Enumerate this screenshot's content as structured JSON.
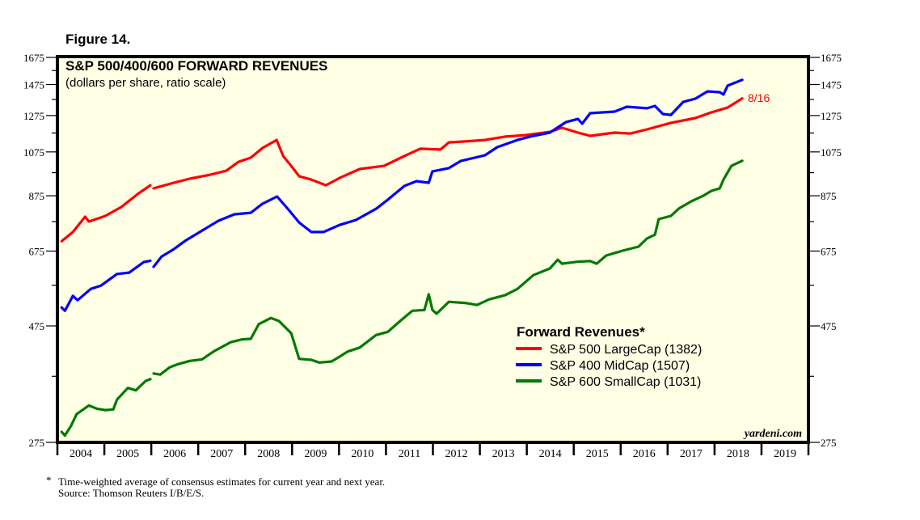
{
  "figure_label": "Figure 14.",
  "watermark": "yardeni.com",
  "end_label": "8/16",
  "footnote": {
    "marker": "*",
    "line1": "Time-weighted average of consensus estimates for current year and next year.",
    "line2": "Source: Thomson Reuters I/B/E/S."
  },
  "colors": {
    "background": "#ffffe6",
    "sp500": "#ff0000",
    "sp400": "#0000ff",
    "sp600": "#007a00"
  },
  "chart_data": {
    "type": "line",
    "title": "S&P 500/400/600 FORWARD REVENUES",
    "subtitle": "(dollars per share, ratio scale)",
    "xlabel": "",
    "ylabel": "",
    "yscale": "log",
    "ylim": [
      275,
      1675
    ],
    "xlim": [
      2004,
      2020
    ],
    "yticks": [
      275,
      475,
      675,
      875,
      1075,
      1275,
      1475,
      1675
    ],
    "yticks_minor": [
      375,
      575,
      775,
      975,
      1175,
      1375,
      1575
    ],
    "xtick_labels": [
      "2004",
      "2005",
      "2006",
      "2007",
      "2008",
      "2009",
      "2010",
      "2011",
      "2012",
      "2013",
      "2014",
      "2015",
      "2016",
      "2017",
      "2018",
      "2019"
    ],
    "grid": false,
    "legend": {
      "title": "Forward Revenues*",
      "placement": "lower-right",
      "entries": [
        "S&P 500 LargeCap (1382)",
        "S&P 400 MidCap (1507)",
        "S&P 600 SmallCap (1031)"
      ]
    },
    "series": [
      {
        "name": "S&P 500 LargeCap",
        "latest": 1382,
        "color_key": "sp500",
        "segments": [
          [
            [
              2004.09,
              707
            ],
            [
              2004.33,
              738
            ],
            [
              2004.59,
              793
            ],
            [
              2004.67,
              775
            ],
            [
              2005.02,
              796
            ],
            [
              2005.36,
              830
            ],
            [
              2005.71,
              882
            ],
            [
              2005.98,
              919
            ]
          ],
          [
            [
              2006.05,
              906
            ],
            [
              2006.48,
              930
            ],
            [
              2006.82,
              948
            ],
            [
              2007.26,
              966
            ],
            [
              2007.6,
              984
            ],
            [
              2007.86,
              1026
            ],
            [
              2008.12,
              1046
            ],
            [
              2008.37,
              1095
            ],
            [
              2008.67,
              1137
            ],
            [
              2008.81,
              1054
            ],
            [
              2008.98,
              1007
            ],
            [
              2009.15,
              959
            ],
            [
              2009.41,
              944
            ],
            [
              2009.72,
              919
            ],
            [
              2010.01,
              951
            ],
            [
              2010.44,
              992
            ],
            [
              2010.96,
              1007
            ],
            [
              2011.39,
              1054
            ],
            [
              2011.73,
              1091
            ],
            [
              2012.16,
              1087
            ],
            [
              2012.34,
              1124
            ],
            [
              2012.68,
              1129
            ],
            [
              2013.11,
              1137
            ],
            [
              2013.54,
              1155
            ],
            [
              2013.97,
              1163
            ],
            [
              2014.49,
              1181
            ],
            [
              2014.75,
              1204
            ],
            [
              2015.09,
              1177
            ],
            [
              2015.35,
              1159
            ],
            [
              2015.87,
              1177
            ],
            [
              2016.21,
              1172
            ],
            [
              2016.56,
              1195
            ],
            [
              2017.07,
              1232
            ],
            [
              2017.59,
              1260
            ],
            [
              2017.93,
              1294
            ],
            [
              2018.28,
              1324
            ],
            [
              2018.59,
              1382
            ]
          ]
        ]
      },
      {
        "name": "S&P 400 MidCap",
        "latest": 1507,
        "color_key": "sp400",
        "segments": [
          [
            [
              2004.09,
              518
            ],
            [
              2004.16,
              510
            ],
            [
              2004.33,
              547
            ],
            [
              2004.43,
              536
            ],
            [
              2004.71,
              565
            ],
            [
              2004.93,
              574
            ],
            [
              2005.27,
              606
            ],
            [
              2005.53,
              610
            ],
            [
              2005.84,
              641
            ],
            [
              2005.98,
              645
            ]
          ],
          [
            [
              2006.05,
              627
            ],
            [
              2006.22,
              658
            ],
            [
              2006.48,
              681
            ],
            [
              2006.74,
              710
            ],
            [
              2007.08,
              743
            ],
            [
              2007.43,
              778
            ],
            [
              2007.77,
              802
            ],
            [
              2008.12,
              808
            ],
            [
              2008.37,
              843
            ],
            [
              2008.68,
              872
            ],
            [
              2008.89,
              827
            ],
            [
              2009.15,
              772
            ],
            [
              2009.41,
              738
            ],
            [
              2009.67,
              738
            ],
            [
              2010.01,
              763
            ],
            [
              2010.36,
              781
            ],
            [
              2010.79,
              823
            ],
            [
              2011.04,
              859
            ],
            [
              2011.39,
              916
            ],
            [
              2011.65,
              937
            ],
            [
              2011.91,
              930
            ],
            [
              2011.99,
              981
            ],
            [
              2012.34,
              996
            ],
            [
              2012.59,
              1030
            ],
            [
              2013.11,
              1058
            ],
            [
              2013.37,
              1099
            ],
            [
              2013.8,
              1137
            ],
            [
              2014.14,
              1159
            ],
            [
              2014.49,
              1177
            ],
            [
              2014.83,
              1236
            ],
            [
              2015.09,
              1255
            ],
            [
              2015.18,
              1227
            ],
            [
              2015.35,
              1289
            ],
            [
              2015.87,
              1299
            ],
            [
              2016.13,
              1329
            ],
            [
              2016.56,
              1319
            ],
            [
              2016.73,
              1334
            ],
            [
              2016.9,
              1284
            ],
            [
              2017.07,
              1279
            ],
            [
              2017.33,
              1359
            ],
            [
              2017.59,
              1380
            ],
            [
              2017.85,
              1428
            ],
            [
              2018.11,
              1423
            ],
            [
              2018.19,
              1407
            ],
            [
              2018.28,
              1467
            ],
            [
              2018.59,
              1507
            ]
          ]
        ]
      },
      {
        "name": "S&P 600 SmallCap",
        "latest": 1031,
        "color_key": "sp600",
        "segments": [
          [
            [
              2004.09,
              289
            ],
            [
              2004.16,
              284
            ],
            [
              2004.29,
              297
            ],
            [
              2004.41,
              314
            ],
            [
              2004.67,
              327
            ],
            [
              2004.84,
              322
            ],
            [
              2005.02,
              320
            ],
            [
              2005.19,
              321
            ],
            [
              2005.27,
              336
            ],
            [
              2005.5,
              355
            ],
            [
              2005.67,
              351
            ],
            [
              2005.88,
              367
            ],
            [
              2005.98,
              370
            ]
          ],
          [
            [
              2006.05,
              380
            ],
            [
              2006.19,
              378
            ],
            [
              2006.39,
              391
            ],
            [
              2006.57,
              397
            ],
            [
              2006.82,
              403
            ],
            [
              2007.08,
              406
            ],
            [
              2007.34,
              422
            ],
            [
              2007.69,
              440
            ],
            [
              2007.94,
              446
            ],
            [
              2008.12,
              447
            ],
            [
              2008.29,
              479
            ],
            [
              2008.55,
              493
            ],
            [
              2008.72,
              486
            ],
            [
              2008.98,
              459
            ],
            [
              2009.15,
              407
            ],
            [
              2009.41,
              405
            ],
            [
              2009.58,
              400
            ],
            [
              2009.84,
              402
            ],
            [
              2010.01,
              411
            ],
            [
              2010.18,
              421
            ],
            [
              2010.44,
              429
            ],
            [
              2010.79,
              455
            ],
            [
              2011.04,
              462
            ],
            [
              2011.3,
              486
            ],
            [
              2011.56,
              510
            ],
            [
              2011.82,
              512
            ],
            [
              2011.91,
              551
            ],
            [
              2011.99,
              512
            ],
            [
              2012.08,
              503
            ],
            [
              2012.34,
              532
            ],
            [
              2012.68,
              529
            ],
            [
              2012.94,
              524
            ],
            [
              2013.2,
              538
            ],
            [
              2013.54,
              549
            ],
            [
              2013.8,
              565
            ],
            [
              2014.14,
              603
            ],
            [
              2014.49,
              622
            ],
            [
              2014.66,
              648
            ],
            [
              2014.75,
              636
            ],
            [
              2015.09,
              642
            ],
            [
              2015.35,
              644
            ],
            [
              2015.49,
              636
            ],
            [
              2015.69,
              661
            ],
            [
              2016.04,
              676
            ],
            [
              2016.38,
              689
            ],
            [
              2016.56,
              716
            ],
            [
              2016.73,
              729
            ],
            [
              2016.81,
              784
            ],
            [
              2017.07,
              796
            ],
            [
              2017.24,
              824
            ],
            [
              2017.5,
              852
            ],
            [
              2017.76,
              875
            ],
            [
              2017.93,
              895
            ],
            [
              2018.11,
              906
            ],
            [
              2018.19,
              944
            ],
            [
              2018.36,
              1007
            ],
            [
              2018.59,
              1031
            ]
          ]
        ]
      }
    ]
  }
}
